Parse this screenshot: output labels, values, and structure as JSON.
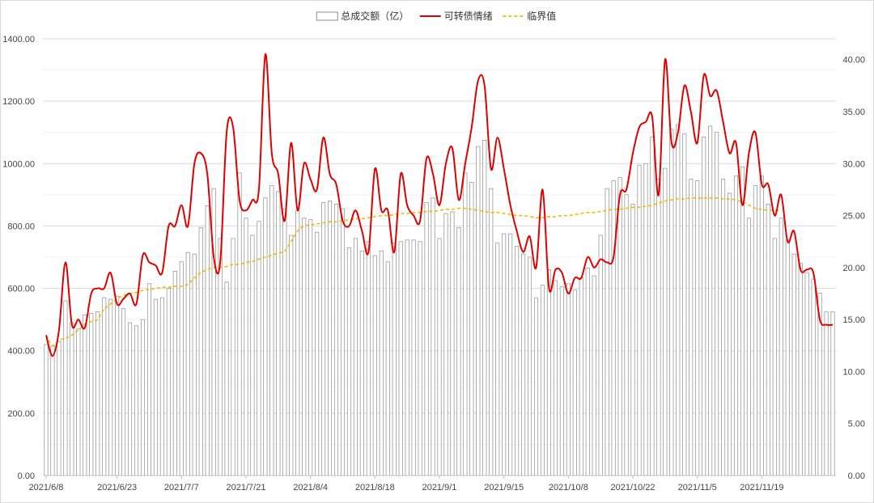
{
  "chart_data": {
    "type": "bar",
    "legend": {
      "position": "top-center",
      "items": [
        {
          "label": "总成交额（亿）",
          "kind": "bar",
          "color": "#ffffff",
          "stroke": "#8c8c8c"
        },
        {
          "label": "可转债情绪",
          "kind": "line",
          "color": "#e00000"
        },
        {
          "label": "临界值",
          "kind": "dashed-line",
          "color": "#f5b800"
        }
      ]
    },
    "left_axis": {
      "min": 0,
      "max": 1400,
      "step": 200,
      "ticks": [
        "0.00",
        "200.00",
        "400.00",
        "600.00",
        "800.00",
        "1000.00",
        "1200.00",
        "1400.00"
      ]
    },
    "right_axis": {
      "min": 0,
      "max": 42,
      "step": 5,
      "ticks": [
        "0.00",
        "5.00",
        "10.00",
        "15.00",
        "20.00",
        "25.00",
        "30.00",
        "35.00",
        "40.00"
      ]
    },
    "grid": true,
    "x_tick_labels": [
      {
        "label": "2021/6/8",
        "index": 0
      },
      {
        "label": "2021/6/23",
        "index": 11
      },
      {
        "label": "2021/7/7",
        "index": 21
      },
      {
        "label": "2021/7/21",
        "index": 31
      },
      {
        "label": "2021/8/4",
        "index": 41
      },
      {
        "label": "2021/8/18",
        "index": 51
      },
      {
        "label": "2021/9/1",
        "index": 61
      },
      {
        "label": "2021/9/15",
        "index": 71
      },
      {
        "label": "2021/10/8",
        "index": 81
      },
      {
        "label": "2021/10/22",
        "index": 91
      },
      {
        "label": "2021/11/5",
        "index": 101
      },
      {
        "label": "2021/11/19",
        "index": 111
      }
    ],
    "series": [
      {
        "name": "总成交额（亿）",
        "axis": "left",
        "type": "bar",
        "values": [
          420,
          415,
          430,
          560,
          490,
          470,
          515,
          520,
          525,
          570,
          565,
          575,
          535,
          490,
          480,
          500,
          615,
          565,
          570,
          600,
          655,
          685,
          715,
          710,
          795,
          865,
          920,
          760,
          620,
          760,
          970,
          825,
          770,
          815,
          890,
          930,
          910,
          855,
          770,
          850,
          825,
          820,
          780,
          875,
          880,
          870,
          855,
          730,
          760,
          720,
          750,
          705,
          720,
          685,
          745,
          750,
          755,
          755,
          750,
          875,
          890,
          760,
          840,
          845,
          795,
          970,
          940,
          1055,
          1075,
          920,
          745,
          775,
          775,
          735,
          710,
          700,
          570,
          610,
          660,
          625,
          605,
          615,
          595,
          635,
          665,
          640,
          770,
          920,
          945,
          955,
          900,
          870,
          995,
          1000,
          1085,
          950,
          985,
          1110,
          1125,
          1095,
          950,
          945,
          1085,
          1120,
          1100,
          950,
          905,
          960,
          990,
          825,
          930,
          960,
          870,
          760,
          825,
          755,
          710,
          680,
          650,
          630,
          585,
          525,
          525
        ]
      },
      {
        "name": "可转债情绪",
        "axis": "right",
        "type": "line",
        "values": [
          13.5,
          11.5,
          14,
          20.5,
          14.5,
          15,
          14.2,
          17.5,
          18,
          18,
          19.5,
          16.5,
          17,
          17.5,
          16.5,
          21.2,
          20.5,
          20.2,
          19.5,
          24,
          24,
          26,
          24,
          30,
          31,
          29,
          21,
          20.5,
          33,
          33.5,
          26.5,
          25.5,
          26.5,
          27.5,
          40.5,
          31,
          29,
          24.5,
          32,
          25.5,
          30,
          28.5,
          27.5,
          32.5,
          29,
          28,
          24.5,
          24,
          25.5,
          23.5,
          21.5,
          29.5,
          25.5,
          25.5,
          21.5,
          29,
          26,
          25,
          24.5,
          30.5,
          29,
          26,
          30,
          31.5,
          26.5,
          30,
          33.5,
          38,
          37.5,
          29.5,
          32.5,
          29.5,
          26,
          23.5,
          21.5,
          23,
          20,
          27.5,
          18,
          19.8,
          19.5,
          17.5,
          19,
          19,
          21,
          20,
          20.8,
          20.5,
          21,
          27,
          27.5,
          31,
          33.5,
          34,
          34.5,
          27,
          40,
          32,
          33,
          37.5,
          35,
          32,
          38.5,
          36.5,
          37,
          34,
          31,
          32,
          26,
          31,
          33,
          28,
          28,
          25,
          27,
          22.5,
          23.5,
          19.8,
          19.8,
          19.5,
          15,
          14.5,
          14.5
        ]
      },
      {
        "name": "临界值",
        "axis": "right",
        "type": "dashed-line",
        "values": [
          13.5,
          12.5,
          13,
          13.2,
          13.5,
          14,
          14.5,
          14.8,
          15,
          16,
          16.5,
          17,
          17.3,
          17.5,
          17.6,
          17.8,
          17.9,
          18,
          18.1,
          18.1,
          18.2,
          18.2,
          18.4,
          19,
          19.5,
          19.8,
          20,
          20,
          20.1,
          20.3,
          20.3,
          20.5,
          20.6,
          20.8,
          21,
          21.2,
          21.4,
          21.6,
          22.5,
          23.5,
          24,
          24.1,
          24.2,
          24.3,
          24.4,
          24.4,
          24.5,
          24.6,
          24.7,
          24.7,
          24.8,
          24.9,
          25,
          25,
          25.1,
          25.2,
          25.2,
          25.3,
          25.3,
          25.4,
          25.4,
          25.5,
          25.6,
          25.6,
          25.7,
          25.7,
          25.6,
          25.5,
          25.4,
          25.3,
          25.3,
          25.2,
          25.1,
          25,
          25,
          24.9,
          24.8,
          24.8,
          24.9,
          24.9,
          25,
          25,
          25.1,
          25.2,
          25.3,
          25.3,
          25.4,
          25.5,
          25.6,
          25.6,
          25.7,
          25.8,
          25.8,
          25.9,
          26,
          26.2,
          26.4,
          26.5,
          26.6,
          26.6,
          26.7,
          26.7,
          26.7,
          26.7,
          26.7,
          26.6,
          26.6,
          26.5,
          26.3,
          26,
          25.7,
          25.6,
          25.5,
          25.5,
          25.5
        ]
      }
    ]
  }
}
